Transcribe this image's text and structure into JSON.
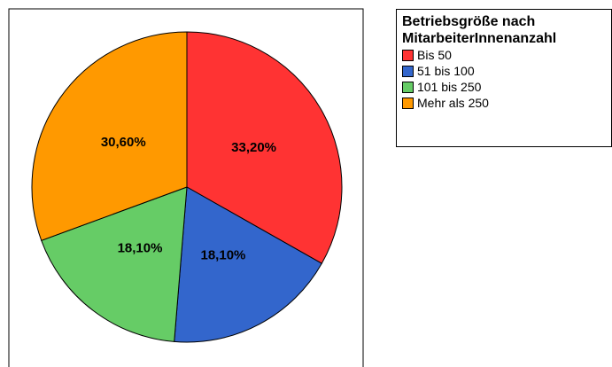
{
  "chart_data": {
    "type": "pie",
    "legend_title": "Betriebsgröße nach MitarbeiterInnenanzahl",
    "categories": [
      "Bis 50",
      "51 bis 100",
      "101 bis 250",
      "Mehr als 250"
    ],
    "values": [
      33.2,
      18.1,
      18.1,
      30.6
    ],
    "value_labels": [
      "33,20%",
      "18,10%",
      "18,10%",
      "30,60%"
    ],
    "colors": [
      "#ff3333",
      "#3366cc",
      "#66cc66",
      "#ff9900"
    ],
    "legend": "top-right"
  }
}
